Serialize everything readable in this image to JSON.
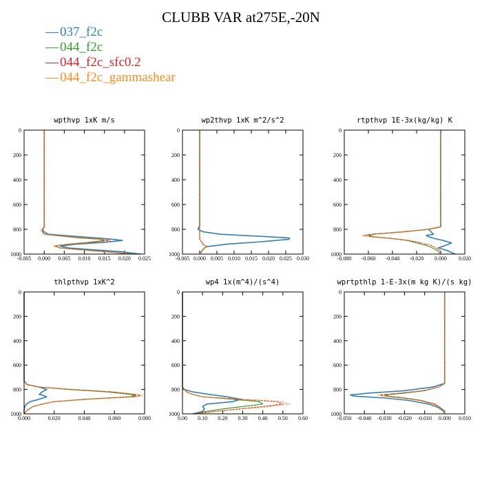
{
  "title": "CLUBB VAR at275E,-20N",
  "legend": [
    {
      "name": "037_f2c",
      "color": "#2f7fb5"
    },
    {
      "name": "044_f2c",
      "color": "#3a9a2f"
    },
    {
      "name": "044_f2c_sfc0.2",
      "color": "#d62728"
    },
    {
      "name": "044_f2c_gammashear",
      "color": "#ff8c1a"
    }
  ],
  "chart_data": [
    {
      "type": "line",
      "title": "wpthvp  1xK m/s",
      "ylim": [
        1000,
        0
      ],
      "xlim": [
        -0.005,
        0.025
      ],
      "yticks": [
        "0",
        "200",
        "400",
        "600",
        "800",
        "1000"
      ],
      "xticks": [
        "-0.005",
        "0.000",
        "0.005",
        "0.010",
        "0.015",
        "0.020",
        "0.025"
      ],
      "y": [
        0,
        200,
        400,
        600,
        780,
        810,
        840,
        870,
        880,
        890,
        905,
        920,
        935,
        950,
        965,
        980,
        1000
      ],
      "series": [
        {
          "name": "037_f2c",
          "values": [
            0.0,
            0.0,
            0.0,
            0.0,
            0.0,
            -0.0005,
            0.001,
            0.013,
            0.017,
            0.0195,
            0.015,
            0.008,
            0.004,
            0.006,
            0.012,
            0.019,
            0.024
          ]
        },
        {
          "name": "044_f2c",
          "values": [
            0.0,
            0.0,
            0.0,
            0.0,
            0.0,
            -0.0005,
            0.0,
            0.009,
            0.014,
            0.015,
            0.011,
            0.006,
            0.0025,
            0.004,
            0.009,
            0.015,
            0.022
          ]
        },
        {
          "name": "044_f2c_sfc0.2",
          "values": [
            0.0,
            0.0,
            0.0,
            0.0,
            0.0,
            -0.0005,
            0.0,
            0.009,
            0.015,
            0.016,
            0.012,
            0.006,
            0.0025,
            0.004,
            0.009,
            0.015,
            0.022
          ]
        },
        {
          "name": "044_f2c_gammashear",
          "values": [
            0.0,
            0.0,
            0.0,
            0.0,
            0.0,
            -0.001,
            0.0,
            0.01,
            0.0155,
            0.0165,
            0.012,
            0.006,
            0.0025,
            0.004,
            0.009,
            0.015,
            0.022
          ]
        }
      ]
    },
    {
      "type": "line",
      "title": "wp2thvp  1xK m^2/s^2",
      "ylim": [
        1000,
        0
      ],
      "xlim": [
        -0.005,
        0.03
      ],
      "yticks": [
        "0",
        "200",
        "400",
        "600",
        "800",
        "1000"
      ],
      "xticks": [
        "-0.005",
        "0.000",
        "0.005",
        "0.010",
        "0.015",
        "0.020",
        "0.025",
        "0.030"
      ],
      "y": [
        0,
        200,
        400,
        600,
        770,
        800,
        820,
        840,
        860,
        870,
        880,
        900,
        920,
        940,
        960,
        980,
        1000
      ],
      "series": [
        {
          "name": "037_f2c",
          "values": [
            0.0,
            0.0,
            0.0,
            0.0,
            0.0,
            -0.0005,
            0.001,
            0.006,
            0.02,
            0.026,
            0.026,
            0.018,
            0.008,
            0.002,
            0.001,
            0.0005,
            0.0
          ]
        },
        {
          "name": "044_f2c",
          "values": [
            0.0,
            0.0,
            0.0,
            0.0,
            0.0,
            0.0,
            0.0,
            0.0,
            0.0,
            0.0,
            0.0,
            0.0005,
            0.001,
            0.002,
            0.001,
            0.0005,
            0.0
          ]
        },
        {
          "name": "044_f2c_sfc0.2",
          "values": [
            0.0,
            0.0,
            0.0,
            0.0,
            0.0,
            0.0,
            0.0,
            0.0,
            0.0,
            0.0,
            0.0,
            0.0005,
            0.001,
            0.002,
            0.001,
            0.0005,
            0.0
          ]
        },
        {
          "name": "044_f2c_gammashear",
          "values": [
            0.0,
            0.0,
            0.0,
            0.0,
            0.0,
            0.0,
            0.0,
            0.0,
            0.0,
            0.0,
            0.0,
            0.0005,
            0.001,
            0.002,
            0.001,
            0.0005,
            0.0
          ]
        }
      ]
    },
    {
      "type": "line",
      "title": "rtpthvp  1E-3x(kg/kg) K",
      "ylim": [
        1000,
        0
      ],
      "xlim": [
        -0.08,
        0.02
      ],
      "yticks": [
        "0",
        "200",
        "400",
        "600",
        "800",
        "1000"
      ],
      "xticks": [
        "-0.080",
        "-0.060",
        "-0.040",
        "-0.020",
        "0.000",
        "0.020"
      ],
      "y": [
        0,
        200,
        400,
        600,
        780,
        800,
        820,
        840,
        850,
        860,
        875,
        890,
        910,
        930,
        950,
        970,
        1000
      ],
      "series": [
        {
          "name": "037_f2c",
          "values": [
            0.0,
            0.0,
            0.0,
            0.0,
            0.0,
            -0.01,
            -0.008,
            -0.006,
            -0.012,
            -0.01,
            -0.005,
            0.002,
            0.009,
            0.004,
            -0.002,
            0.005,
            0.012
          ]
        },
        {
          "name": "044_f2c",
          "values": [
            0.0,
            0.0,
            0.0,
            0.0,
            0.0,
            -0.01,
            -0.03,
            -0.055,
            -0.06,
            -0.055,
            -0.04,
            -0.028,
            -0.02,
            -0.012,
            -0.007,
            -0.003,
            0.0
          ]
        },
        {
          "name": "044_f2c_sfc0.2",
          "values": [
            0.0,
            0.0,
            0.0,
            0.0,
            0.0,
            -0.01,
            -0.032,
            -0.058,
            -0.064,
            -0.058,
            -0.04,
            -0.026,
            -0.016,
            -0.008,
            -0.004,
            -0.001,
            0.0
          ]
        },
        {
          "name": "044_f2c_gammashear",
          "values": [
            0.0,
            0.0,
            0.0,
            0.0,
            0.0,
            -0.01,
            -0.032,
            -0.058,
            -0.065,
            -0.058,
            -0.04,
            -0.026,
            -0.016,
            -0.008,
            -0.004,
            -0.001,
            0.0
          ]
        }
      ]
    },
    {
      "type": "line",
      "title": "thlpthvp  1xK^2",
      "ylim": [
        1000,
        0
      ],
      "xlim": [
        0.0,
        0.08
      ],
      "yticks": [
        "0",
        "200",
        "400",
        "600",
        "800",
        "1000"
      ],
      "xticks": [
        "0.000",
        "0.020",
        "0.040",
        "0.060",
        "0.080"
      ],
      "y": [
        0,
        200,
        400,
        600,
        730,
        760,
        780,
        800,
        820,
        840,
        850,
        860,
        880,
        900,
        920,
        940,
        970,
        1000
      ],
      "series": [
        {
          "name": "037_f2c",
          "values": [
            0.0,
            0.0,
            0.0,
            0.0,
            0.0,
            0.002,
            0.01,
            0.015,
            0.012,
            0.01,
            0.013,
            0.015,
            0.01,
            0.004,
            0.0015,
            0.0005,
            0.0,
            0.0
          ]
        },
        {
          "name": "044_f2c",
          "values": [
            0.0,
            0.0,
            0.0,
            0.0,
            0.0,
            0.002,
            0.01,
            0.03,
            0.055,
            0.07,
            0.074,
            0.07,
            0.04,
            0.02,
            0.012,
            0.006,
            0.002,
            0.0
          ]
        },
        {
          "name": "044_f2c_sfc0.2",
          "values": [
            0.0,
            0.0,
            0.0,
            0.0,
            0.0,
            0.002,
            0.01,
            0.032,
            0.058,
            0.073,
            0.077,
            0.073,
            0.042,
            0.02,
            0.012,
            0.006,
            0.002,
            0.0
          ]
        },
        {
          "name": "044_f2c_gammashear",
          "values": [
            0.0,
            0.0,
            0.0,
            0.0,
            0.0,
            0.002,
            0.01,
            0.033,
            0.06,
            0.075,
            0.079,
            0.074,
            0.043,
            0.02,
            0.012,
            0.006,
            0.002,
            0.0
          ]
        }
      ]
    },
    {
      "type": "line",
      "title": "wp4  1x(m^4)/(s^4)",
      "ylim": [
        1000,
        0
      ],
      "xlim": [
        0.0,
        0.6
      ],
      "yticks": [
        "0",
        "200",
        "400",
        "600",
        "800",
        "1000"
      ],
      "xticks": [
        "0.00",
        "0.10",
        "0.20",
        "0.30",
        "0.40",
        "0.50",
        "0.60"
      ],
      "y": [
        0,
        200,
        400,
        600,
        780,
        800,
        820,
        840,
        860,
        880,
        900,
        920,
        940,
        960,
        980,
        1000
      ],
      "series": [
        {
          "name": "037_f2c",
          "values": [
            0.0,
            0.0,
            0.0,
            0.0,
            0.0,
            0.01,
            0.05,
            0.13,
            0.22,
            0.29,
            0.25,
            0.12,
            0.1,
            0.11,
            0.1,
            0.05
          ]
        },
        {
          "name": "044_f2c",
          "values": [
            0.0,
            0.0,
            0.0,
            0.0,
            0.0,
            0.01,
            0.02,
            0.05,
            0.1,
            0.25,
            0.38,
            0.4,
            0.3,
            0.2,
            0.12,
            0.05
          ]
        },
        {
          "name": "044_f2c_sfc0.2",
          "values": [
            0.0,
            0.0,
            0.0,
            0.0,
            0.0,
            0.01,
            0.02,
            0.05,
            0.1,
            0.28,
            0.47,
            0.5,
            0.4,
            0.28,
            0.16,
            0.06
          ]
        },
        {
          "name": "044_f2c_gammashear",
          "values": [
            0.0,
            0.0,
            0.0,
            0.0,
            0.0,
            0.01,
            0.02,
            0.05,
            0.1,
            0.3,
            0.5,
            0.53,
            0.44,
            0.3,
            0.17,
            0.07
          ]
        }
      ]
    },
    {
      "type": "line",
      "title": "wprtpthlp  1-E-3x(m kg K)/(s kg)",
      "ylim": [
        1000,
        0
      ],
      "xlim": [
        -0.05,
        0.01
      ],
      "yticks": [
        "0",
        "200",
        "400",
        "600",
        "800",
        "1000"
      ],
      "xticks": [
        "-0.050",
        "-0.040",
        "-0.030",
        "-0.020",
        "-0.010",
        "0.000",
        "0.010"
      ],
      "y": [
        0,
        200,
        400,
        600,
        750,
        780,
        810,
        830,
        845,
        855,
        870,
        890,
        920,
        950,
        980,
        1000
      ],
      "series": [
        {
          "name": "037_f2c",
          "values": [
            0.0,
            0.0,
            0.0,
            0.0,
            0.0,
            -0.006,
            -0.02,
            -0.038,
            -0.047,
            -0.045,
            -0.03,
            -0.018,
            -0.008,
            -0.003,
            -0.0005,
            0.0
          ]
        },
        {
          "name": "044_f2c",
          "values": [
            0.0,
            0.0,
            0.0,
            0.0,
            0.0,
            -0.003,
            -0.01,
            -0.02,
            -0.03,
            -0.028,
            -0.02,
            -0.012,
            -0.005,
            -0.002,
            0.0,
            0.0
          ]
        },
        {
          "name": "044_f2c_sfc0.2",
          "values": [
            0.0,
            0.0,
            0.0,
            0.0,
            0.0,
            -0.003,
            -0.011,
            -0.022,
            -0.032,
            -0.03,
            -0.021,
            -0.012,
            -0.005,
            -0.002,
            0.0,
            0.0
          ]
        },
        {
          "name": "044_f2c_gammashear",
          "values": [
            0.0,
            0.0,
            0.0,
            0.0,
            0.0,
            -0.003,
            -0.011,
            -0.023,
            -0.033,
            -0.031,
            -0.022,
            -0.013,
            -0.006,
            -0.002,
            0.0,
            0.0
          ]
        }
      ]
    }
  ]
}
